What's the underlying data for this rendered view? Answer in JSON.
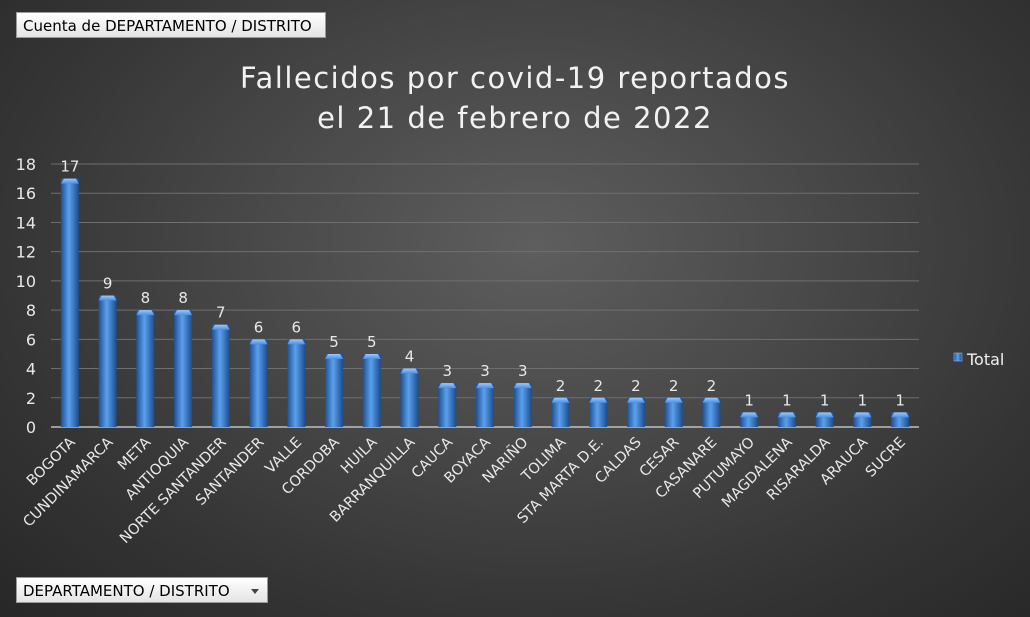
{
  "pivot": {
    "values_field_label": "Cuenta de DEPARTAMENTO / DISTRITO",
    "axis_field_label": "DEPARTAMENTO / DISTRITO"
  },
  "chart_data": {
    "type": "bar",
    "title_lines": [
      "Fallecidos por covid-19 reportados",
      "el 21 de febrero de 2022"
    ],
    "xlabel": "",
    "ylabel": "",
    "ylim": [
      0,
      18
    ],
    "yticks": [
      0,
      2,
      4,
      6,
      8,
      10,
      12,
      14,
      16,
      18
    ],
    "grid": true,
    "legend_position": "right",
    "categories": [
      "BOGOTA",
      "CUNDINAMARCA",
      "META",
      "ANTIOQUIA",
      "NORTE SANTANDER",
      "SANTANDER",
      "VALLE",
      "CORDOBA",
      "HUILA",
      "BARRANQUILLA",
      "CAUCA",
      "BOYACA",
      "NARIÑO",
      "TOLIMA",
      "STA MARTA D.E.",
      "CALDAS",
      "CESAR",
      "CASANARE",
      "PUTUMAYO",
      "MAGDALENA",
      "RISARALDA",
      "ARAUCA",
      "SUCRE"
    ],
    "series": [
      {
        "name": "Total",
        "color": "#2e75c8",
        "values": [
          17,
          9,
          8,
          8,
          7,
          6,
          6,
          5,
          5,
          4,
          3,
          3,
          3,
          2,
          2,
          2,
          2,
          2,
          1,
          1,
          1,
          1,
          1
        ]
      }
    ]
  }
}
